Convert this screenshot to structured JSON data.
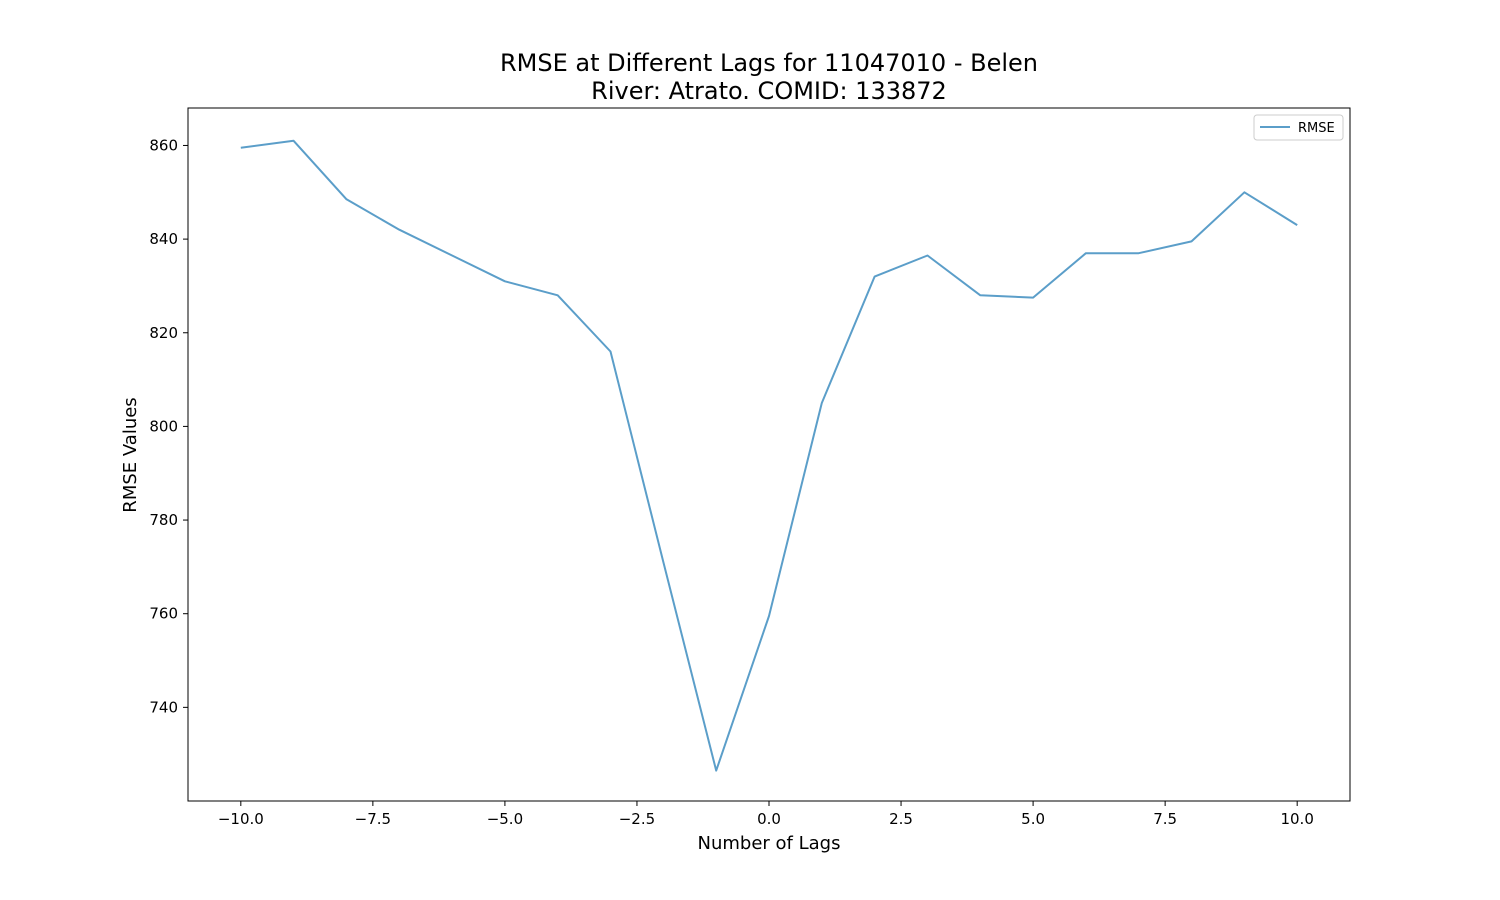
{
  "chart_data": {
    "type": "line",
    "title_line1": "RMSE at Different Lags for 11047010 - Belen",
    "title_line2": "River: Atrato. COMID: 133872",
    "xlabel": "Number of Lags",
    "ylabel": "RMSE Values",
    "xlim": [
      -11,
      11
    ],
    "ylim": [
      720,
      868
    ],
    "xticks": [
      -10.0,
      -7.5,
      -5.0,
      -2.5,
      0.0,
      2.5,
      5.0,
      7.5,
      10.0
    ],
    "xtick_labels": [
      "−10.0",
      "−7.5",
      "−5.0",
      "−2.5",
      "0.0",
      "2.5",
      "5.0",
      "7.5",
      "10.0"
    ],
    "yticks": [
      740,
      760,
      780,
      800,
      820,
      840,
      860
    ],
    "ytick_labels": [
      "740",
      "760",
      "780",
      "800",
      "820",
      "840",
      "860"
    ],
    "grid": false,
    "legend_position": "top-right",
    "series": [
      {
        "name": "RMSE",
        "color": "#5b9ec9",
        "x": [
          -10,
          -9,
          -8,
          -7,
          -6,
          -5,
          -4,
          -3,
          -2,
          -1,
          0,
          1,
          2,
          3,
          4,
          5,
          6,
          7,
          8,
          9,
          10
        ],
        "y": [
          859.5,
          861.0,
          848.5,
          842.0,
          836.5,
          831.0,
          828.0,
          816.0,
          771.0,
          726.5,
          759.5,
          805.0,
          832.0,
          836.5,
          828.0,
          827.5,
          837.0,
          837.0,
          839.5,
          850.0,
          843.0
        ]
      }
    ]
  }
}
